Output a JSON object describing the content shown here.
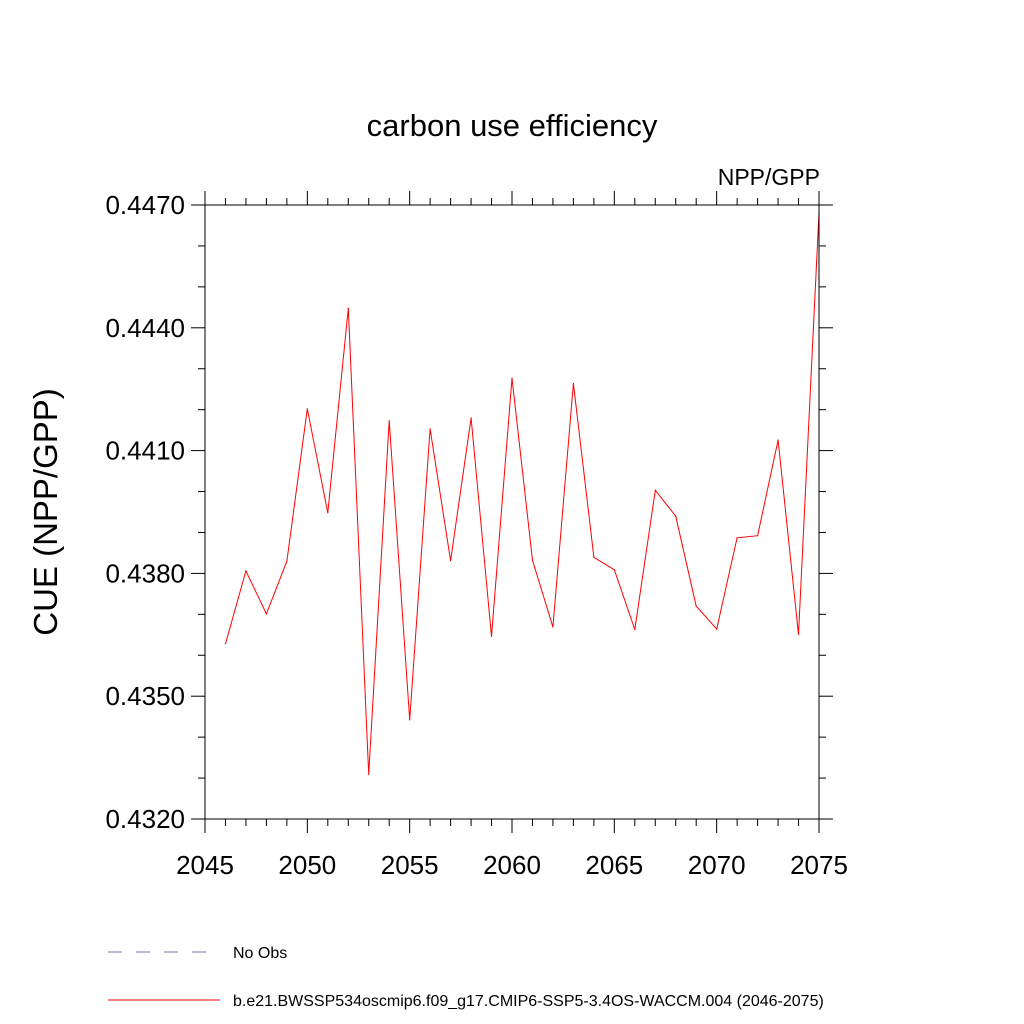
{
  "chart_data": {
    "type": "line",
    "title": "carbon use efficiency",
    "subtitle": "NPP/GPP",
    "xlabel": "",
    "ylabel": "CUE  (NPP/GPP)",
    "xlim": [
      2045,
      2075
    ],
    "ylim": [
      0.432,
      0.447
    ],
    "x_ticks": [
      2045,
      2050,
      2055,
      2060,
      2065,
      2070,
      2075
    ],
    "x_tick_labels": [
      "2045",
      "2050",
      "2055",
      "2060",
      "2065",
      "2070",
      "2075"
    ],
    "y_ticks": [
      0.432,
      0.435,
      0.438,
      0.441,
      0.444,
      0.447
    ],
    "y_tick_labels": [
      "0.4320",
      "0.4350",
      "0.4380",
      "0.4410",
      "0.4440",
      "0.4470"
    ],
    "y_minor_step": 0.001,
    "x_minor_step": 1,
    "grid": false,
    "series": [
      {
        "name": "b.e21.BWSSP534oscmip6.f09_g17.CMIP6-SSP5-3.4OS-WACCM.004 (2046-2075)",
        "color": "#ff0000",
        "style": "solid",
        "x": [
          2046,
          2047,
          2048,
          2049,
          2050,
          2051,
          2052,
          2053,
          2054,
          2055,
          2056,
          2057,
          2058,
          2059,
          2060,
          2061,
          2062,
          2063,
          2064,
          2065,
          2066,
          2067,
          2068,
          2069,
          2070,
          2071,
          2072,
          2073,
          2074,
          2075
        ],
        "values": [
          0.43628,
          0.43806,
          0.43701,
          0.4383,
          0.44202,
          0.43948,
          0.44448,
          0.43309,
          0.44173,
          0.43442,
          0.44153,
          0.43831,
          0.4418,
          0.43646,
          0.44277,
          0.43832,
          0.43669,
          0.44264,
          0.43839,
          0.43809,
          0.43663,
          0.44003,
          0.4394,
          0.4372,
          0.43664,
          0.43887,
          0.43892,
          0.44126,
          0.43651,
          0.44681
        ]
      }
    ],
    "legend": {
      "placement": "bottom",
      "entries": [
        {
          "label": "No Obs",
          "color": "#7b6fb0",
          "style": "dashed"
        },
        {
          "label": "b.e21.BWSSP534oscmip6.f09_g17.CMIP6-SSP5-3.4OS-WACCM.004 (2046-2075)",
          "color": "#ff0000",
          "style": "solid"
        }
      ]
    }
  }
}
